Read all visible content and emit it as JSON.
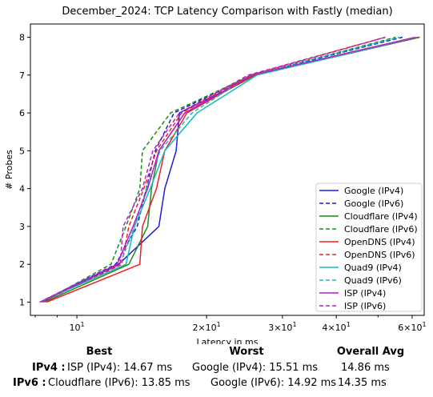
{
  "chart_data": {
    "type": "line",
    "title": "December_2024: TCP Latency Comparison with Fastly (median)",
    "xlabel": "Latency in ms",
    "ylabel": "# Probes",
    "xscale": "log",
    "xlim": [
      7.8,
      64
    ],
    "ylim": [
      0.65,
      8.35
    ],
    "grid": false,
    "legend_position": "lower-right",
    "x_ticks": [
      {
        "value": 10,
        "label": "10^1"
      },
      {
        "value": 20,
        "label": "2×10^1"
      },
      {
        "value": 30,
        "label": "3×10^1"
      },
      {
        "value": 40,
        "label": "4×10^1"
      },
      {
        "value": 60,
        "label": "6×10^1"
      }
    ],
    "y_ticks": [
      1,
      2,
      3,
      4,
      5,
      6,
      7,
      8
    ],
    "series": [
      {
        "name": "Google (IPv4)",
        "color": "#1f1fd0",
        "dash": false,
        "x": [
          8.3,
          12.5,
          15.5,
          16.0,
          17.0,
          17.3,
          26.0,
          62.0
        ],
        "y": [
          1,
          2,
          3,
          4,
          5,
          6,
          7,
          8
        ]
      },
      {
        "name": "Google (IPv6)",
        "color": "#1f1fd0",
        "dash": true,
        "x": [
          8.2,
          12.3,
          13.8,
          14.5,
          15.2,
          16.8,
          25.5,
          57.0
        ],
        "y": [
          1,
          2,
          3,
          4,
          5,
          6,
          7,
          8
        ]
      },
      {
        "name": "Cloudflare (IPv4)",
        "color": "#1a8c1a",
        "dash": false,
        "x": [
          8.4,
          13.2,
          14.6,
          14.9,
          15.5,
          17.8,
          26.0,
          62.5
        ],
        "y": [
          1,
          2,
          3,
          4,
          5,
          6,
          7,
          8
        ]
      },
      {
        "name": "Cloudflare (IPv6)",
        "color": "#1a8c1a",
        "dash": true,
        "x": [
          8.3,
          12.0,
          13.0,
          14.0,
          14.2,
          16.5,
          25.5,
          55.0
        ],
        "y": [
          1,
          2,
          3,
          4,
          5,
          6,
          7,
          8
        ]
      },
      {
        "name": "OpenDNS (IPv4)",
        "color": "#ee2020",
        "dash": false,
        "x": [
          8.5,
          14.0,
          14.2,
          15.3,
          16.0,
          18.0,
          25.8,
          62.0
        ],
        "y": [
          1,
          2,
          3,
          4,
          5,
          6,
          7,
          8
        ]
      },
      {
        "name": "OpenDNS (IPv6)",
        "color": "#ee2020",
        "dash": true,
        "x": [
          8.3,
          12.7,
          13.2,
          14.3,
          15.3,
          17.5,
          25.3,
          52.0
        ],
        "y": [
          1,
          2,
          3,
          4,
          5,
          6,
          7,
          8
        ]
      },
      {
        "name": "Quad9 (IPv4)",
        "color": "#1ab8b8",
        "dash": false,
        "x": [
          8.2,
          13.0,
          13.6,
          14.8,
          16.0,
          19.0,
          26.2,
          61.5
        ],
        "y": [
          1,
          2,
          3,
          4,
          5,
          6,
          7,
          8
        ]
      },
      {
        "name": "Quad9 (IPv6)",
        "color": "#1ab8b8",
        "dash": true,
        "x": [
          8.2,
          12.6,
          13.6,
          14.5,
          15.6,
          18.5,
          25.3,
          56.0
        ],
        "y": [
          1,
          2,
          3,
          4,
          5,
          6,
          7,
          8
        ]
      },
      {
        "name": "ISP (IPv4)",
        "color": "#b61fd0",
        "dash": false,
        "x": [
          8.2,
          12.4,
          13.5,
          14.6,
          15.5,
          17.8,
          25.5,
          61.0
        ],
        "y": [
          1,
          2,
          3,
          4,
          5,
          6,
          7,
          8
        ]
      },
      {
        "name": "ISP (IPv6)",
        "color": "#b61fd0",
        "dash": true,
        "x": [
          8.2,
          12.6,
          12.8,
          14.2,
          15.0,
          17.3,
          25.0,
          52.0
        ],
        "y": [
          1,
          2,
          3,
          4,
          5,
          6,
          7,
          8
        ]
      }
    ]
  },
  "stats": {
    "headers": {
      "best": "Best",
      "worst": "Worst",
      "avg": "Overall Avg"
    },
    "ipv4": {
      "label": "IPv4 :",
      "best": "ISP (IPv4): 14.67 ms",
      "worst": "Google (IPv4): 15.51 ms",
      "avg": "14.86 ms"
    },
    "ipv6": {
      "label": "IPv6 :",
      "best": "Cloudflare (IPv6): 13.85 ms",
      "worst": "Google (IPv6): 14.92 ms",
      "avg": "14.35 ms"
    }
  }
}
